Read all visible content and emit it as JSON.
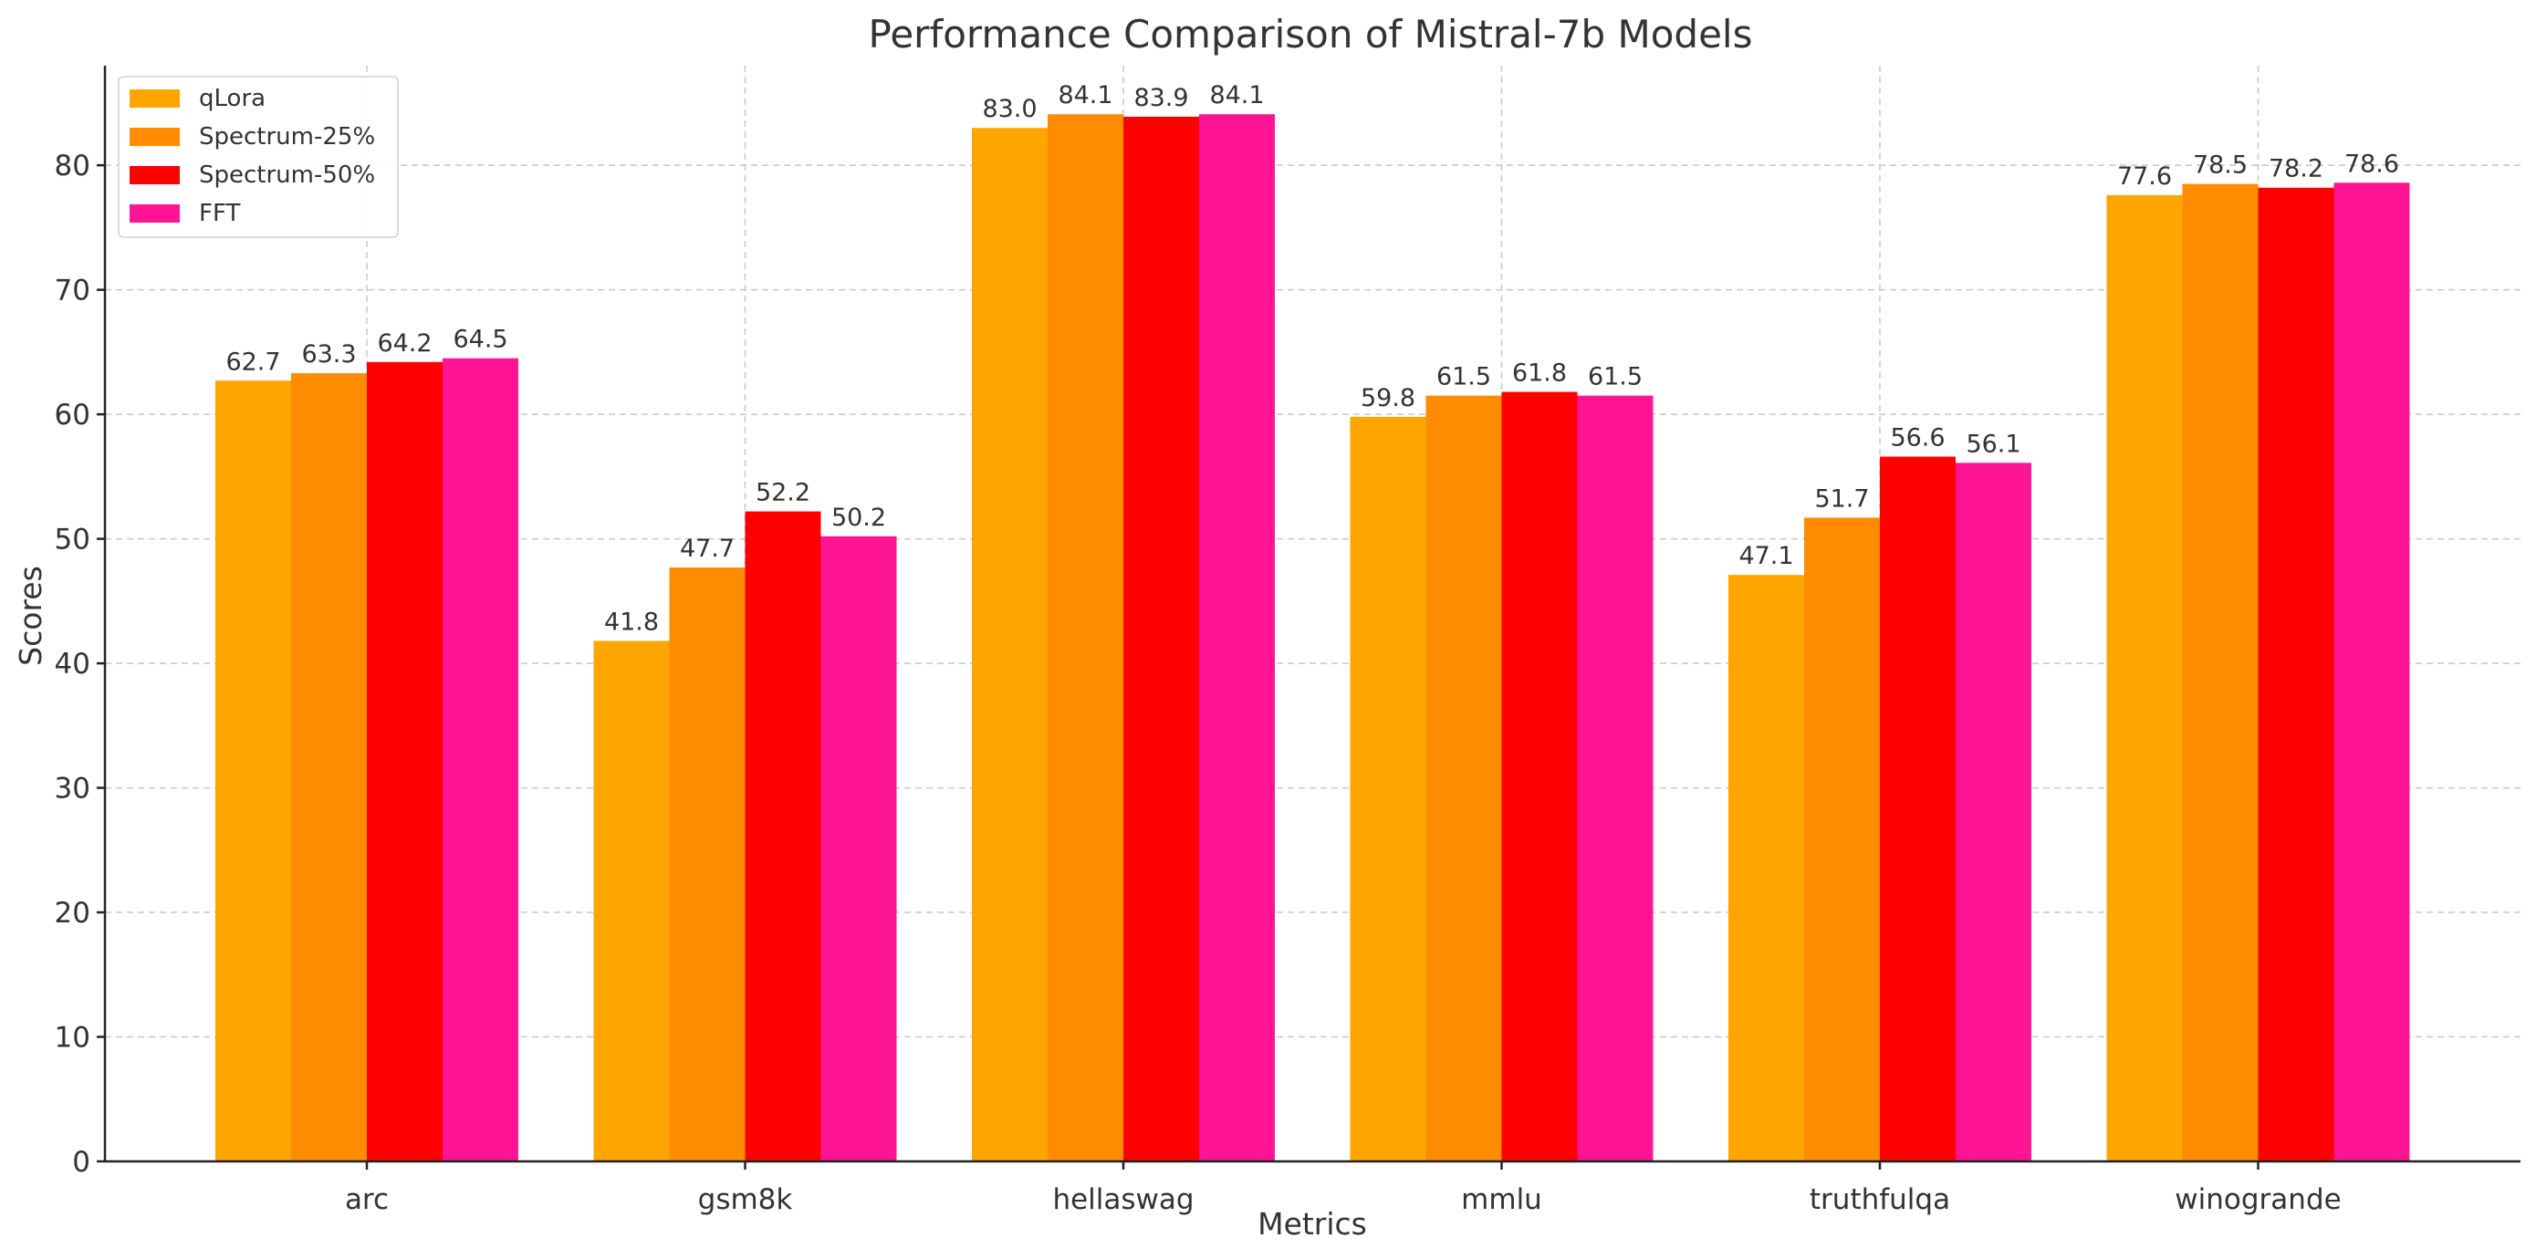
{
  "chart_data": {
    "type": "bar",
    "title": "Performance Comparison of Mistral-7b Models",
    "xlabel": "Metrics",
    "ylabel": "Scores",
    "ylim": [
      0,
      88
    ],
    "yticks": [
      0,
      10,
      20,
      30,
      40,
      50,
      60,
      70,
      80
    ],
    "grid": true,
    "legend_position": "top-left",
    "categories": [
      "arc",
      "gsm8k",
      "hellaswag",
      "mmlu",
      "truthfulqa",
      "winogrande"
    ],
    "series": [
      {
        "name": "qLora",
        "color": "#FFA500",
        "values": [
          62.7,
          41.8,
          83.0,
          59.8,
          47.1,
          77.6
        ]
      },
      {
        "name": "Spectrum-25%",
        "color": "#FF8C00",
        "values": [
          63.3,
          47.7,
          84.1,
          61.5,
          51.7,
          78.5
        ]
      },
      {
        "name": "Spectrum-50%",
        "color": "#FF0000",
        "values": [
          64.2,
          52.2,
          83.9,
          61.8,
          56.6,
          78.2
        ]
      },
      {
        "name": "FFT",
        "color": "#FF1493",
        "values": [
          64.5,
          50.2,
          84.1,
          61.5,
          56.1,
          78.6
        ]
      }
    ]
  }
}
